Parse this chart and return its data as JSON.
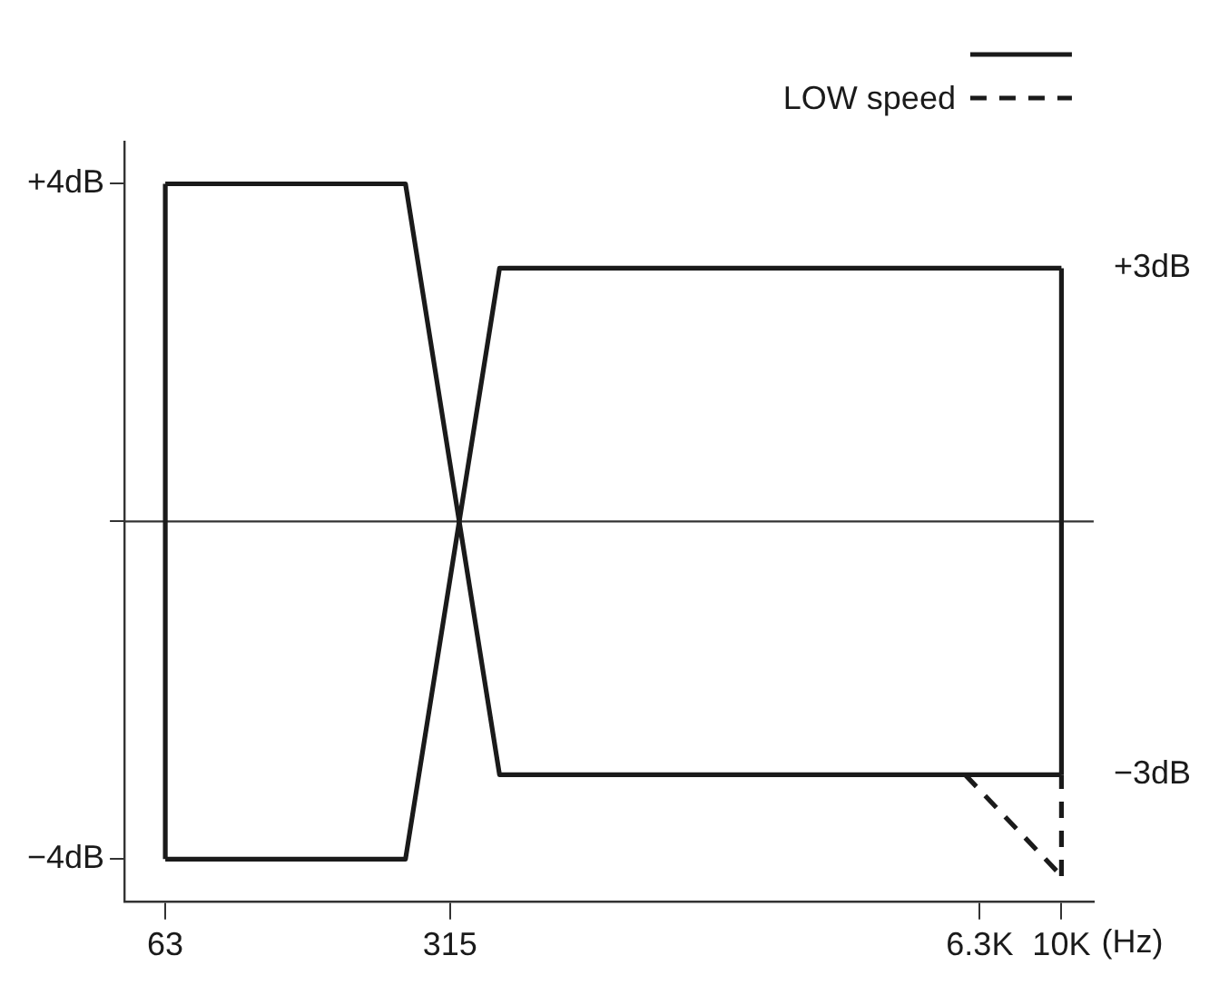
{
  "chart_data": {
    "type": "line",
    "xlabel": "(Hz)",
    "series": [
      {
        "color": "#1a1a1a",
        "line_style": "solid",
        "x": [
          63,
          245,
          417,
          10000
        ],
        "values": [
          4,
          4,
          -3,
          -3
        ]
      },
      {
        "color": "#1a1a1a",
        "line_style": "solid",
        "x": [
          63,
          245,
          417,
          10000
        ],
        "values": [
          -4,
          -4,
          3,
          3
        ]
      },
      {
        "color": "#1a1a1a",
        "line_style": "solid",
        "x": [
          63,
          63
        ],
        "values": [
          -4,
          4
        ]
      },
      {
        "color": "#1a1a1a",
        "line_style": "solid",
        "x": [
          10000,
          10000
        ],
        "values": [
          -3,
          3
        ]
      },
      {
        "name": "LOW speed",
        "color": "#1a1a1a",
        "line_style": "dashed",
        "x": [
          5800,
          10000
        ],
        "values": [
          -3,
          -4.2
        ]
      },
      {
        "color": "#1a1a1a",
        "line_style": "dashed",
        "x": [
          10000,
          10000
        ],
        "values": [
          -4.2,
          -3
        ]
      }
    ],
    "log": "x",
    "xlim": [
      50,
      12000
    ],
    "xticks": [
      63,
      315,
      {
        "value": 6300,
        "label": "6.3K"
      },
      {
        "value": 10000,
        "label": "10K"
      }
    ],
    "ylim": [
      -4.5,
      4.5
    ],
    "yticks": [
      {
        "value": 4,
        "label": "+4dB"
      },
      {
        "value": 0,
        "label": null
      },
      {
        "value": -4,
        "label": "−4dB"
      }
    ],
    "y2lim": [
      -4.5,
      4.5
    ],
    "y2ticks": [
      {
        "value": 3,
        "label": "+3dB"
      },
      {
        "value": -3,
        "label": "−3dB"
      }
    ],
    "ref_lines": [
      {
        "axis": "y",
        "value": 0,
        "color": "#333333"
      }
    ],
    "grid": false,
    "legend": "top right",
    "marker": "none"
  }
}
